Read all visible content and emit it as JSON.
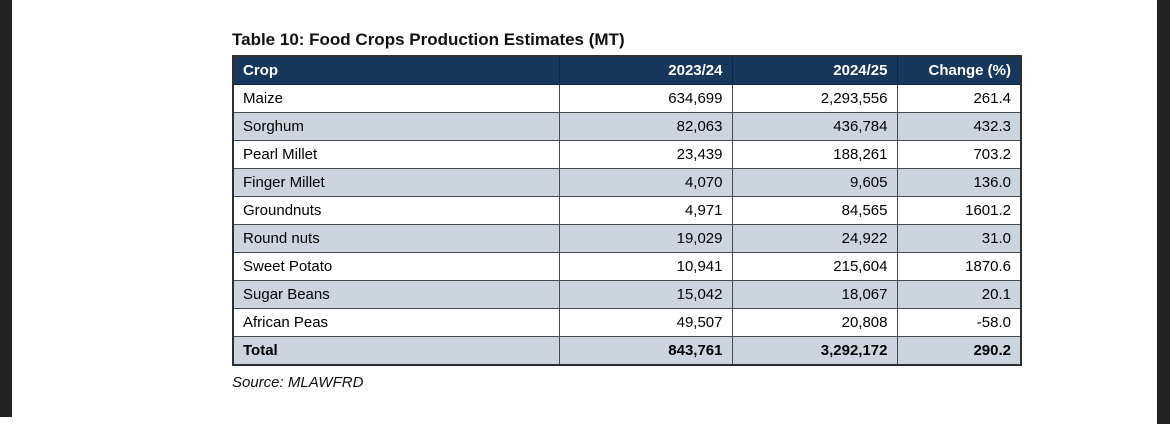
{
  "page": {
    "title": "Table 10: Food Crops Production Estimates (MT)",
    "source_note": "Source: MLAWFRD"
  },
  "table": {
    "columns": [
      "Crop",
      "2023/24",
      "2024/25",
      "Change (%)"
    ],
    "rows": [
      [
        "Maize",
        "634,699",
        "2,293,556",
        "261.4"
      ],
      [
        "Sorghum",
        "82,063",
        "436,784",
        "432.3"
      ],
      [
        "Pearl Millet",
        "23,439",
        "188,261",
        "703.2"
      ],
      [
        "Finger Millet",
        "4,070",
        "9,605",
        "136.0"
      ],
      [
        "Groundnuts",
        "4,971",
        "84,565",
        "1601.2"
      ],
      [
        "Round nuts",
        "19,029",
        "24,922",
        "31.0"
      ],
      [
        "Sweet Potato",
        "10,941",
        "215,604",
        "1870.6"
      ],
      [
        "Sugar Beans",
        "15,042",
        "18,067",
        "20.1"
      ],
      [
        "African Peas",
        "49,507",
        "20,808",
        "-58.0"
      ]
    ],
    "total": [
      "Total",
      "843,761",
      "3,292,172",
      "290.2"
    ]
  },
  "colors": {
    "header_bg": "#17375d",
    "header_text": "#ffffff",
    "shaded_row_bg": "#ccd5de",
    "border": "#4a4a4a",
    "edge_bar": "#222225"
  }
}
